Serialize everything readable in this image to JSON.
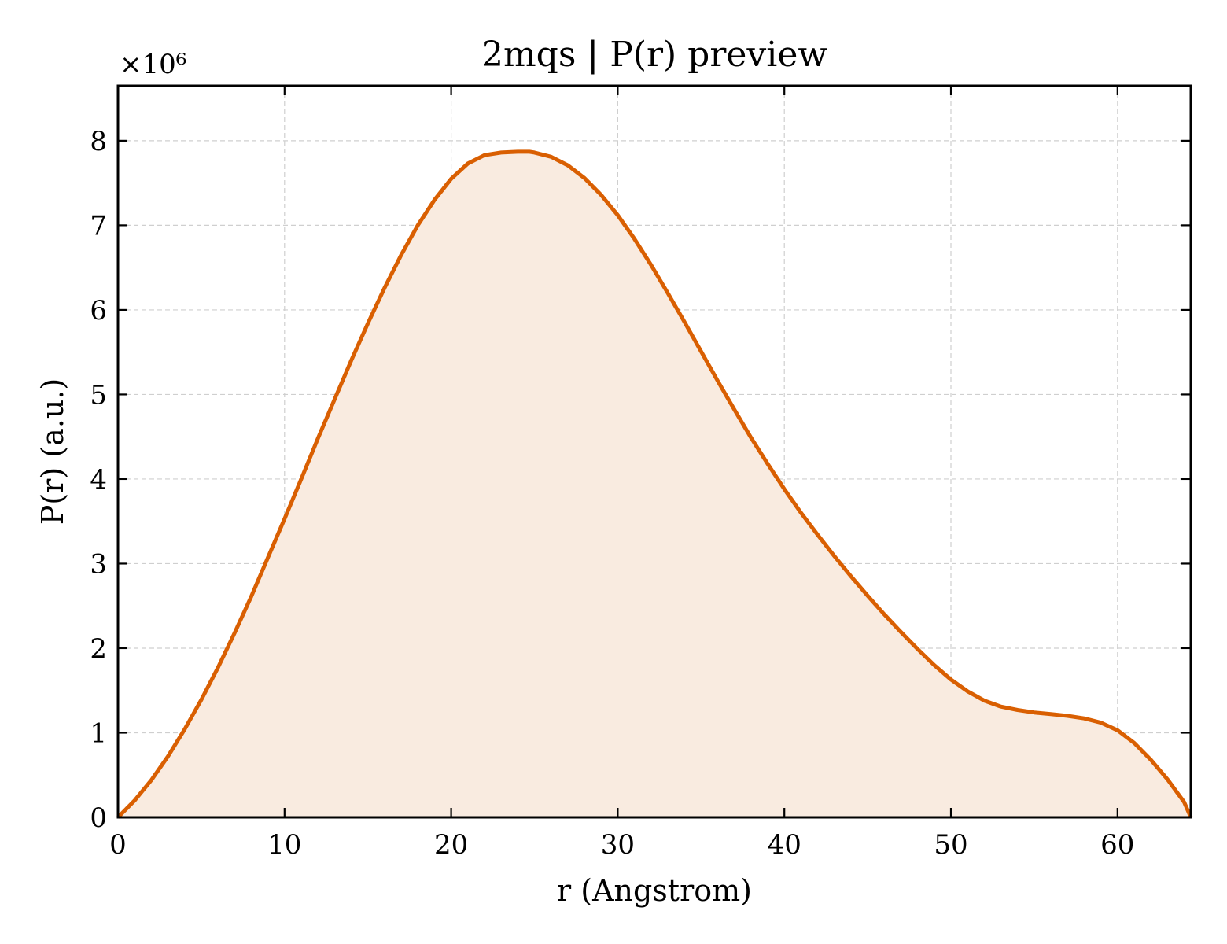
{
  "chart_data": {
    "type": "area",
    "title": "2mqs | P(r) preview",
    "xlabel": "r (Angstrom)",
    "ylabel": "P(r) (a.u.)",
    "y_multiplier": "×10⁶",
    "xlim": [
      0,
      64.4
    ],
    "ylim": [
      0,
      8.65
    ],
    "xticks": [
      "0",
      "10",
      "20",
      "30",
      "40",
      "50",
      "60"
    ],
    "yticks": [
      "0",
      "1",
      "2",
      "3",
      "4",
      "5",
      "6",
      "7",
      "8"
    ],
    "grid": true,
    "line_color": "#d95f02",
    "fill_color": "#f9ebe0",
    "series": [
      {
        "x": [
          0,
          1,
          2,
          3,
          4,
          5,
          6,
          7,
          8,
          9,
          10,
          11,
          12,
          13,
          14,
          15,
          16,
          17,
          18,
          19,
          20,
          21,
          22,
          23,
          24,
          24.7,
          25,
          26,
          27,
          28,
          29,
          30,
          31,
          32,
          33,
          34,
          35,
          36,
          37,
          38,
          39,
          40,
          41,
          42,
          43,
          44,
          45,
          46,
          47,
          48,
          49,
          50,
          51,
          52,
          53,
          54,
          55,
          56,
          57,
          58,
          59,
          60,
          61,
          62,
          63,
          64,
          64.4
        ],
        "y": [
          0,
          0.2,
          0.44,
          0.72,
          1.04,
          1.39,
          1.77,
          2.18,
          2.61,
          3.07,
          3.53,
          4.0,
          4.48,
          4.94,
          5.4,
          5.84,
          6.26,
          6.65,
          7.0,
          7.3,
          7.55,
          7.73,
          7.83,
          7.86,
          7.87,
          7.87,
          7.86,
          7.81,
          7.71,
          7.56,
          7.36,
          7.12,
          6.84,
          6.53,
          6.2,
          5.86,
          5.51,
          5.16,
          4.82,
          4.49,
          4.18,
          3.88,
          3.6,
          3.34,
          3.09,
          2.85,
          2.62,
          2.4,
          2.19,
          1.99,
          1.8,
          1.63,
          1.49,
          1.38,
          1.31,
          1.27,
          1.24,
          1.22,
          1.2,
          1.17,
          1.12,
          1.03,
          0.88,
          0.68,
          0.45,
          0.18,
          0
        ]
      }
    ]
  }
}
